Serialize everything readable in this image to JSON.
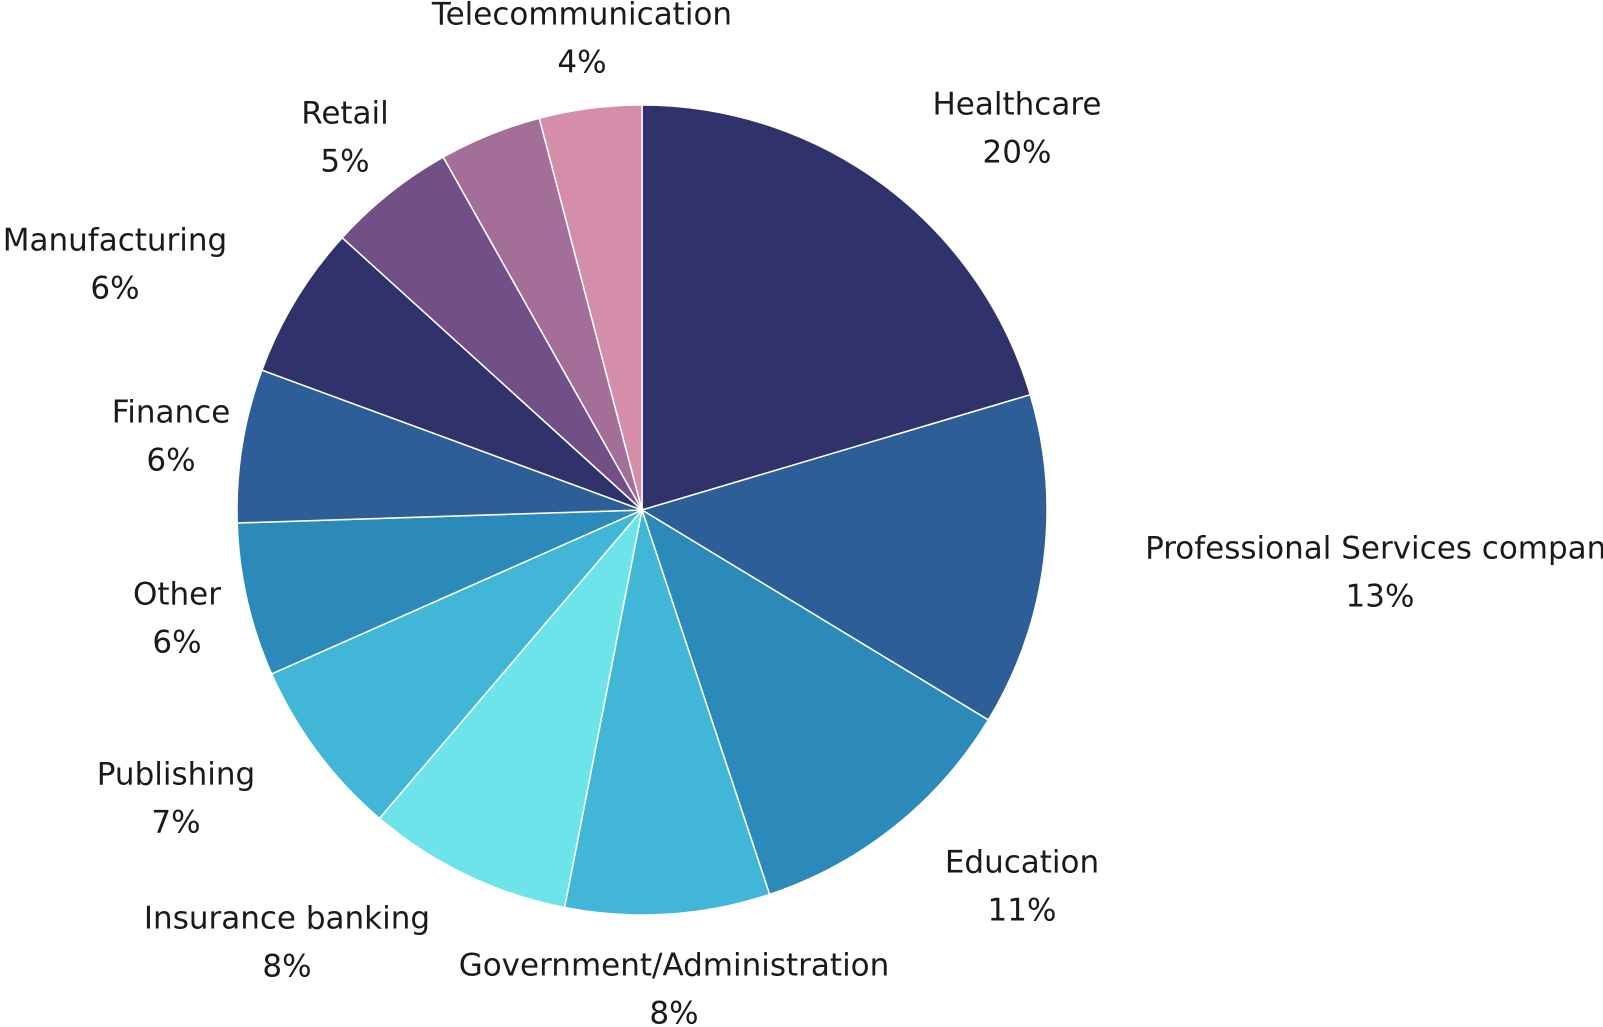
{
  "chart_data": {
    "type": "pie",
    "slices": [
      {
        "label": "Healthcare",
        "value": 20,
        "value_label": "20%",
        "color": "#30336b"
      },
      {
        "label": "Professional Services compani",
        "value": 13,
        "value_label": "13%",
        "color": "#2e5e98"
      },
      {
        "label": "Education",
        "value": 11,
        "value_label": "11%",
        "color": "#2b8ab9"
      },
      {
        "label": "Government/Administration",
        "value": 8,
        "value_label": "8%",
        "color": "#41b6d6"
      },
      {
        "label": "Insurance banking",
        "value": 8,
        "value_label": "8%",
        "color": "#6ce4e9"
      },
      {
        "label": "Publishing",
        "value": 7,
        "value_label": "7%",
        "color": "#41b6d6"
      },
      {
        "label": "Other",
        "value": 6,
        "value_label": "6%",
        "color": "#2b8ab9"
      },
      {
        "label": "Finance",
        "value": 6,
        "value_label": "6%",
        "color": "#2e5e98"
      },
      {
        "label": "Manufacturing",
        "value": 6,
        "value_label": "6%",
        "color": "#30336b"
      },
      {
        "label": "Retail",
        "value": 5,
        "value_label": "5%",
        "color": "#724f86"
      },
      {
        "label": "Telecommunication",
        "value": 4,
        "value_label": "4%",
        "color": "#a36e97"
      },
      {
        "label": "",
        "value": 4,
        "value_label": "",
        "color": "#d58ea9"
      }
    ],
    "start_angle": "12 o'clock",
    "direction": "clockwise",
    "legend": "none"
  }
}
